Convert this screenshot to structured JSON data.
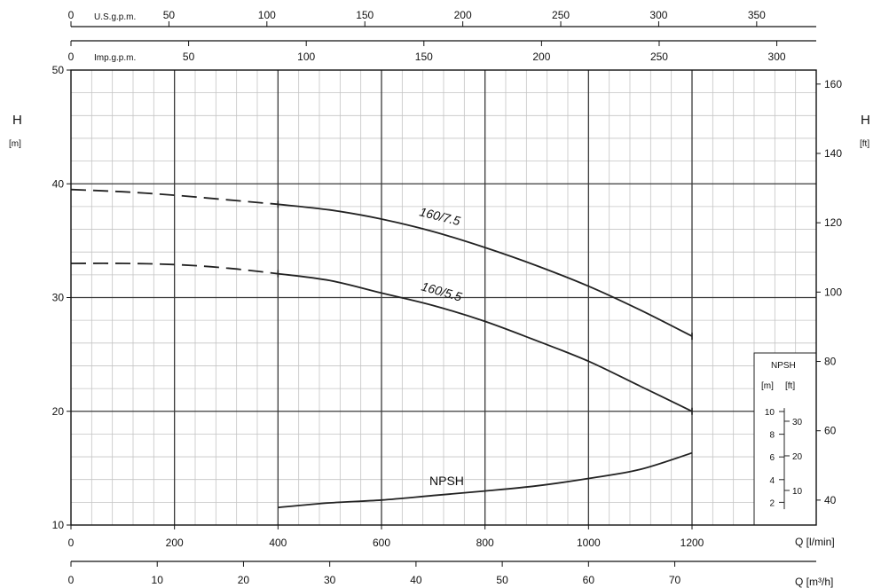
{
  "chart_data": {
    "type": "line",
    "x": {
      "ticks": [
        0,
        200,
        400,
        600,
        800,
        1000,
        1200
      ],
      "range": [
        0,
        1440
      ],
      "label": "Q [l/min]"
    },
    "x_m3h": {
      "ticks": [
        0,
        10,
        20,
        30,
        40,
        50,
        60,
        70
      ],
      "label": "Q [m³/h]"
    },
    "x_usgpm": {
      "ticks": [
        0,
        50,
        100,
        150,
        200,
        250,
        300,
        350
      ],
      "label": "U.S.g.p.m."
    },
    "x_impgpm": {
      "ticks": [
        0,
        50,
        100,
        150,
        200,
        250,
        300
      ],
      "label": "Imp.g.p.m."
    },
    "y": {
      "ticks": [
        10,
        20,
        30,
        40,
        50
      ],
      "range": [
        10,
        50
      ],
      "label": "H",
      "unit": "[m]"
    },
    "y_ft": {
      "ticks": [
        40,
        60,
        80,
        100,
        120,
        140,
        160
      ],
      "label": "H",
      "unit": "[ft]"
    },
    "npsh_inset": {
      "title": "NPSH",
      "unit_m": "[m]",
      "unit_ft": "[ft]",
      "m_ticks": [
        2,
        4,
        6,
        8,
        10
      ],
      "ft_ticks": [
        10,
        20,
        30
      ]
    },
    "series": [
      {
        "name": "160/7.5",
        "dashed_x": [
          0,
          100,
          200,
          300,
          400
        ],
        "dashed_y": [
          39.5,
          39.3,
          39.0,
          38.6,
          38.2
        ],
        "solid_x": [
          400,
          500,
          600,
          700,
          800,
          900,
          1000,
          1100,
          1200
        ],
        "solid_y": [
          38.2,
          37.7,
          36.9,
          35.8,
          34.4,
          32.8,
          31.0,
          28.9,
          26.6
        ]
      },
      {
        "name": "160/5.5",
        "dashed_x": [
          0,
          100,
          200,
          300,
          400
        ],
        "dashed_y": [
          33.0,
          33.0,
          32.9,
          32.6,
          32.1
        ],
        "solid_x": [
          400,
          500,
          600,
          700,
          800,
          900,
          1000,
          1100,
          1200
        ],
        "solid_y": [
          32.1,
          31.5,
          30.4,
          29.3,
          27.9,
          26.2,
          24.4,
          22.2,
          20.0
        ]
      },
      {
        "name": "NPSH",
        "solid_x": [
          400,
          500,
          600,
          700,
          800,
          900,
          1000,
          1100,
          1200
        ],
        "npsh_m": [
          1.55,
          1.95,
          2.2,
          2.6,
          3.0,
          3.45,
          4.1,
          4.9,
          6.35
        ]
      }
    ]
  }
}
